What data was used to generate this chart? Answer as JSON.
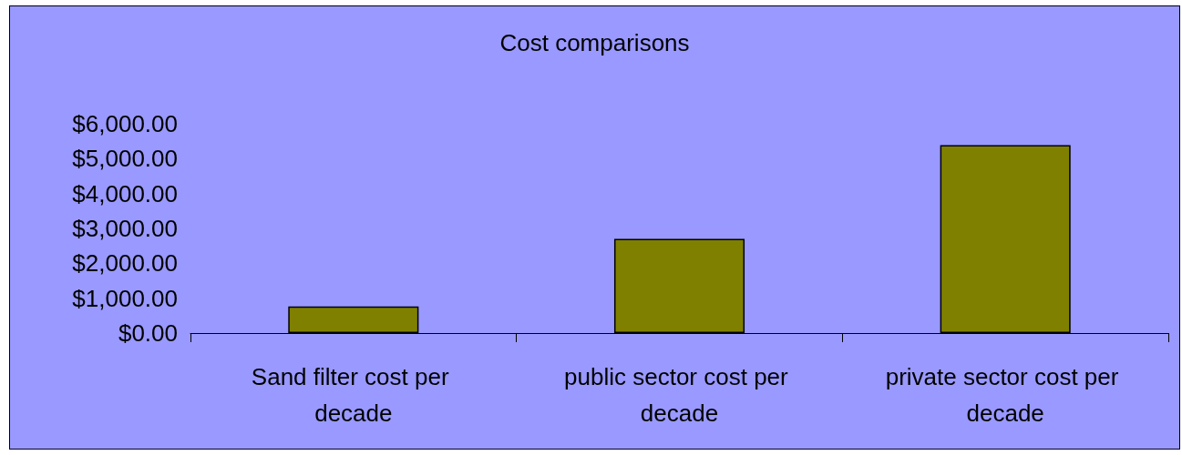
{
  "chart_data": {
    "type": "bar",
    "title": "Cost comparisons",
    "categories": [
      "Sand filter cost per decade",
      "public sector cost per decade",
      "private sector cost per decade"
    ],
    "values": [
      760,
      2700,
      5390
    ],
    "color": "#808000",
    "ylim": [
      0,
      6000
    ],
    "yticks": [
      {
        "value": 0,
        "label": "$0.00"
      },
      {
        "value": 1000,
        "label": "$1,000.00"
      },
      {
        "value": 2000,
        "label": "$2,000.00"
      },
      {
        "value": 3000,
        "label": "$3,000.00"
      },
      {
        "value": 4000,
        "label": "$4,000.00"
      },
      {
        "value": 5000,
        "label": "$5,000.00"
      },
      {
        "value": 6000,
        "label": "$6,000.00"
      }
    ],
    "grid": false
  }
}
